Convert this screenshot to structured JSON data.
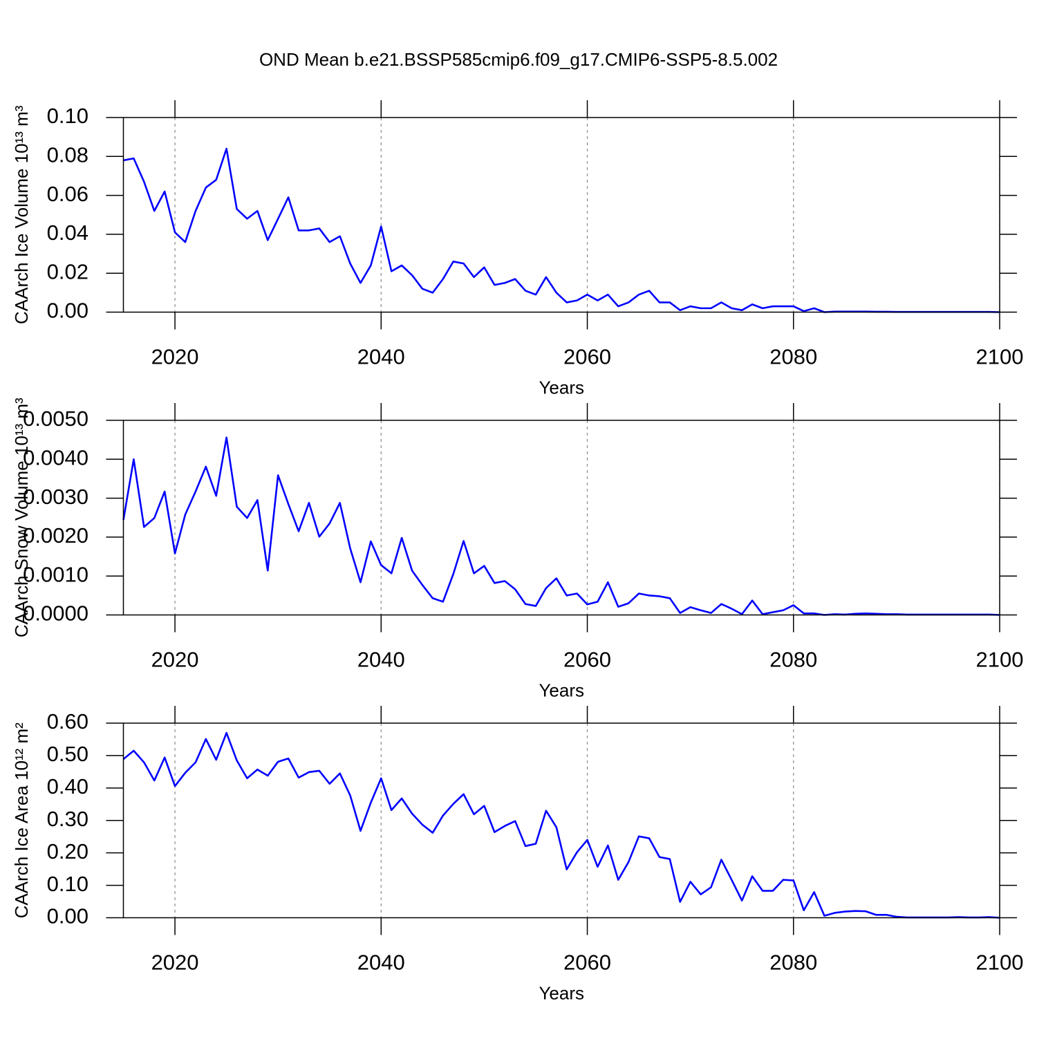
{
  "chart_data": [
    {
      "type": "line",
      "title": "OND Mean b.e21.BSSP585cmip6.f09_g17.CMIP6-SSP5-8.5.002",
      "ylabel": "CAArch Ice Volume 10¹³ m³",
      "xlabel": "Years",
      "color": "#0000ff",
      "xgrid": true,
      "x": [
        2015,
        2016,
        2017,
        2018,
        2019,
        2020,
        2021,
        2022,
        2023,
        2024,
        2025,
        2026,
        2027,
        2028,
        2029,
        2030,
        2031,
        2032,
        2033,
        2034,
        2035,
        2036,
        2037,
        2038,
        2039,
        2040,
        2041,
        2042,
        2043,
        2044,
        2045,
        2046,
        2047,
        2048,
        2049,
        2050,
        2051,
        2052,
        2053,
        2054,
        2055,
        2056,
        2057,
        2058,
        2059,
        2060,
        2061,
        2062,
        2063,
        2064,
        2065,
        2066,
        2067,
        2068,
        2069,
        2070,
        2071,
        2072,
        2073,
        2074,
        2075,
        2076,
        2077,
        2078,
        2079,
        2080,
        2081,
        2082,
        2083,
        2084,
        2085,
        2086,
        2087,
        2088,
        2089,
        2090,
        2091,
        2092,
        2093,
        2094,
        2095,
        2096,
        2097,
        2098,
        2099,
        2100
      ],
      "values": [
        0.078,
        0.079,
        0.067,
        0.052,
        0.062,
        0.041,
        0.036,
        0.052,
        0.064,
        0.068,
        0.084,
        0.053,
        0.048,
        0.052,
        0.037,
        0.048,
        0.059,
        0.042,
        0.042,
        0.043,
        0.036,
        0.039,
        0.025,
        0.015,
        0.024,
        0.044,
        0.021,
        0.024,
        0.019,
        0.012,
        0.01,
        0.017,
        0.026,
        0.025,
        0.018,
        0.023,
        0.014,
        0.015,
        0.017,
        0.011,
        0.009,
        0.018,
        0.01,
        0.005,
        0.006,
        0.009,
        0.006,
        0.009,
        0.003,
        0.005,
        0.009,
        0.011,
        0.005,
        0.005,
        0.001,
        0.003,
        0.002,
        0.002,
        0.005,
        0.002,
        0.001,
        0.004,
        0.002,
        0.003,
        0.003,
        0.003,
        0.0005,
        0.002,
        0.0,
        0.0003,
        0.0003,
        0.0003,
        0.0003,
        0.0002,
        0.0002,
        0.0001,
        0.0001,
        0.0001,
        0.0001,
        0.0001,
        0.0001,
        0.0001,
        0.0001,
        0.0001,
        0.0001,
        0.0
      ],
      "xlim": [
        2015,
        2100
      ],
      "xticks": [
        2020,
        2040,
        2060,
        2080,
        2100
      ],
      "ylim": [
        0,
        0.1
      ],
      "yticks": [
        {
          "value": 0,
          "label": "0.00"
        },
        {
          "value": 0.02,
          "label": "0.02"
        },
        {
          "value": 0.04,
          "label": "0.04"
        },
        {
          "value": 0.06,
          "label": "0.06"
        },
        {
          "value": 0.08,
          "label": "0.08"
        },
        {
          "value": 0.1,
          "label": "0.10"
        }
      ]
    },
    {
      "type": "line",
      "ylabel": "CAArch Snow Volume 10¹³ m³",
      "xlabel": "Years",
      "color": "#0000ff",
      "xgrid": true,
      "x": [
        2015,
        2016,
        2017,
        2018,
        2019,
        2020,
        2021,
        2022,
        2023,
        2024,
        2025,
        2026,
        2027,
        2028,
        2029,
        2030,
        2031,
        2032,
        2033,
        2034,
        2035,
        2036,
        2037,
        2038,
        2039,
        2040,
        2041,
        2042,
        2043,
        2044,
        2045,
        2046,
        2047,
        2048,
        2049,
        2050,
        2051,
        2052,
        2053,
        2054,
        2055,
        2056,
        2057,
        2058,
        2059,
        2060,
        2061,
        2062,
        2063,
        2064,
        2065,
        2066,
        2067,
        2068,
        2069,
        2070,
        2071,
        2072,
        2073,
        2074,
        2075,
        2076,
        2077,
        2078,
        2079,
        2080,
        2081,
        2082,
        2083,
        2084,
        2085,
        2086,
        2087,
        2088,
        2089,
        2090,
        2091,
        2092,
        2093,
        2094,
        2095,
        2096,
        2097,
        2098,
        2099,
        2100
      ],
      "values": [
        0.00244,
        0.004,
        0.00226,
        0.00249,
        0.00317,
        0.00158,
        0.00258,
        0.00317,
        0.00381,
        0.00306,
        0.00456,
        0.00278,
        0.00249,
        0.00295,
        0.00114,
        0.00359,
        0.00285,
        0.00215,
        0.00288,
        0.00201,
        0.00235,
        0.00288,
        0.00171,
        0.00084,
        0.00189,
        0.00128,
        0.00107,
        0.00198,
        0.00114,
        0.00077,
        0.00043,
        0.00034,
        0.00105,
        0.0019,
        0.00107,
        0.00126,
        0.00082,
        0.00087,
        0.00066,
        0.00028,
        0.00023,
        0.00069,
        0.00094,
        0.0005,
        0.00055,
        0.00027,
        0.00034,
        0.00084,
        0.00021,
        0.0003,
        0.00055,
        0.0005,
        0.00048,
        0.00043,
        5e-05,
        0.0002,
        0.00012,
        5e-05,
        0.00028,
        0.00016,
        2e-05,
        0.00037,
        2e-05,
        7e-05,
        0.00012,
        0.00025,
        4e-05,
        4e-05,
        0.0,
        2e-05,
        1e-05,
        3e-05,
        4e-05,
        3e-05,
        2e-05,
        2e-05,
        1e-05,
        1e-05,
        1e-05,
        1e-05,
        1e-05,
        1e-05,
        1e-05,
        1e-05,
        1e-05,
        0.0
      ],
      "xlim": [
        2015,
        2100
      ],
      "xticks": [
        2020,
        2040,
        2060,
        2080,
        2100
      ],
      "ylim": [
        0,
        0.005
      ],
      "yticks": [
        {
          "value": 0,
          "label": "0.0000"
        },
        {
          "value": 0.001,
          "label": "0.0010"
        },
        {
          "value": 0.002,
          "label": "0.0020"
        },
        {
          "value": 0.003,
          "label": "0.0030"
        },
        {
          "value": 0.004,
          "label": "0.0040"
        },
        {
          "value": 0.005,
          "label": "0.0050"
        }
      ]
    },
    {
      "type": "line",
      "ylabel": "CAArch Ice Area 10¹² m²",
      "xlabel": "Years",
      "color": "#0000ff",
      "xgrid": true,
      "x": [
        2015,
        2016,
        2017,
        2018,
        2019,
        2020,
        2021,
        2022,
        2023,
        2024,
        2025,
        2026,
        2027,
        2028,
        2029,
        2030,
        2031,
        2032,
        2033,
        2034,
        2035,
        2036,
        2037,
        2038,
        2039,
        2040,
        2041,
        2042,
        2043,
        2044,
        2045,
        2046,
        2047,
        2048,
        2049,
        2050,
        2051,
        2052,
        2053,
        2054,
        2055,
        2056,
        2057,
        2058,
        2059,
        2060,
        2061,
        2062,
        2063,
        2064,
        2065,
        2066,
        2067,
        2068,
        2069,
        2070,
        2071,
        2072,
        2073,
        2074,
        2075,
        2076,
        2077,
        2078,
        2079,
        2080,
        2081,
        2082,
        2083,
        2084,
        2085,
        2086,
        2087,
        2088,
        2089,
        2090,
        2091,
        2092,
        2093,
        2094,
        2095,
        2096,
        2097,
        2098,
        2099,
        2100
      ],
      "values": [
        0.489,
        0.515,
        0.479,
        0.423,
        0.494,
        0.406,
        0.447,
        0.479,
        0.551,
        0.487,
        0.57,
        0.485,
        0.43,
        0.457,
        0.438,
        0.481,
        0.491,
        0.432,
        0.449,
        0.453,
        0.413,
        0.445,
        0.377,
        0.268,
        0.355,
        0.43,
        0.332,
        0.368,
        0.321,
        0.287,
        0.262,
        0.315,
        0.351,
        0.381,
        0.319,
        0.345,
        0.264,
        0.283,
        0.298,
        0.221,
        0.228,
        0.33,
        0.279,
        0.149,
        0.202,
        0.24,
        0.157,
        0.223,
        0.117,
        0.172,
        0.251,
        0.245,
        0.187,
        0.181,
        0.049,
        0.111,
        0.072,
        0.094,
        0.179,
        0.117,
        0.053,
        0.128,
        0.083,
        0.083,
        0.117,
        0.115,
        0.023,
        0.079,
        0.006,
        0.015,
        0.019,
        0.021,
        0.02,
        0.009,
        0.009,
        0.003,
        0.001,
        0.001,
        0.001,
        0.001,
        0.001,
        0.002,
        0.001,
        0.001,
        0.002,
        0.0
      ],
      "xlim": [
        2015,
        2100
      ],
      "xticks": [
        2020,
        2040,
        2060,
        2080,
        2100
      ],
      "ylim": [
        0,
        0.6
      ],
      "yticks": [
        {
          "value": 0,
          "label": "0.00"
        },
        {
          "value": 0.1,
          "label": "0.10"
        },
        {
          "value": 0.2,
          "label": "0.20"
        },
        {
          "value": 0.3,
          "label": "0.30"
        },
        {
          "value": 0.4,
          "label": "0.40"
        },
        {
          "value": 0.5,
          "label": "0.50"
        },
        {
          "value": 0.6,
          "label": "0.60"
        }
      ]
    }
  ]
}
